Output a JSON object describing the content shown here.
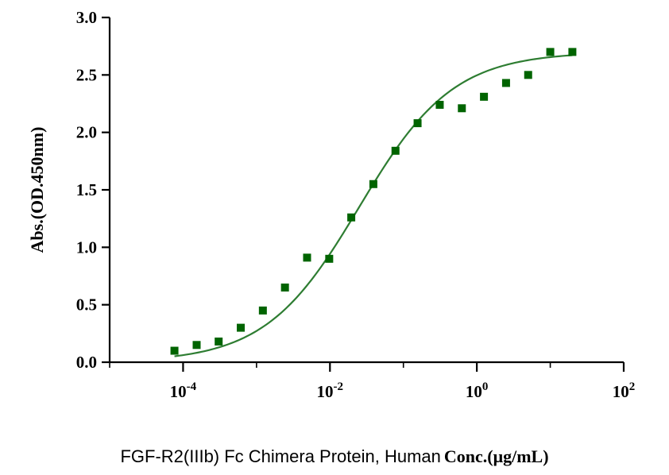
{
  "chart_data": {
    "type": "scatter",
    "x_scale": "log10",
    "xlim": [
      1e-05,
      100
    ],
    "ylim": [
      0,
      3
    ],
    "x_ticks": [
      {
        "value": 0.0001,
        "base": "10",
        "exp": "-4"
      },
      {
        "value": 0.01,
        "base": "10",
        "exp": "-2"
      },
      {
        "value": 1,
        "base": "10",
        "exp": "0"
      },
      {
        "value": 100,
        "base": "10",
        "exp": "2"
      }
    ],
    "y_ticks": [
      "0.0",
      "0.5",
      "1.0",
      "1.5",
      "2.0",
      "2.5",
      "3.0"
    ],
    "ylabel": "Abs.(OD.450nm)",
    "xlabel_prefix": "FGF-R2(IIIb) Fc Chimera Protein, Human",
    "xlabel_suffix": "Conc.(μg/mL)",
    "grid": false,
    "series": [
      {
        "marker_color": "#006400",
        "points": [
          {
            "x": 7.63e-05,
            "y": 0.1
          },
          {
            "x": 0.000153,
            "y": 0.15
          },
          {
            "x": 0.000305,
            "y": 0.18
          },
          {
            "x": 0.00061,
            "y": 0.3
          },
          {
            "x": 0.00122,
            "y": 0.45
          },
          {
            "x": 0.00244,
            "y": 0.65
          },
          {
            "x": 0.00488,
            "y": 0.91
          },
          {
            "x": 0.00977,
            "y": 0.9
          },
          {
            "x": 0.0195,
            "y": 1.26
          },
          {
            "x": 0.039,
            "y": 1.55
          },
          {
            "x": 0.078,
            "y": 1.84
          },
          {
            "x": 0.156,
            "y": 2.08
          },
          {
            "x": 0.3125,
            "y": 2.24
          },
          {
            "x": 0.625,
            "y": 2.21
          },
          {
            "x": 1.25,
            "y": 2.31
          },
          {
            "x": 2.5,
            "y": 2.43
          },
          {
            "x": 5,
            "y": 2.5
          },
          {
            "x": 10,
            "y": 2.7
          },
          {
            "x": 20,
            "y": 2.7
          }
        ]
      }
    ],
    "fit": {
      "model": "4PL",
      "line_color": "#2e7d32",
      "bottom": 0.0,
      "top": 2.7,
      "ec50": 0.025,
      "hill": 0.68,
      "x_range": [
        7.63e-05,
        20
      ]
    }
  }
}
